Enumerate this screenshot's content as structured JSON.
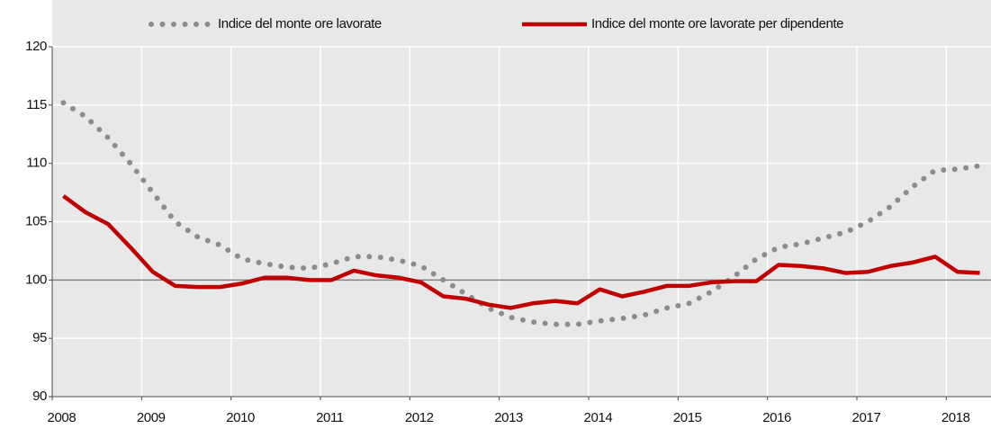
{
  "chart_data": {
    "type": "line",
    "categories": [
      "2008",
      null,
      null,
      null,
      "2009",
      null,
      null,
      null,
      "2010",
      null,
      null,
      null,
      "2011",
      null,
      null,
      null,
      "2012",
      null,
      null,
      null,
      "2013",
      null,
      null,
      null,
      "2014",
      null,
      null,
      null,
      "2015",
      null,
      null,
      null,
      "2016",
      null,
      null,
      null,
      "2017",
      null,
      null,
      null,
      "2018",
      null
    ],
    "series": [
      {
        "name": "Indice del monte ore lavorate",
        "color": "#8c8c8c",
        "style": "dotted",
        "values": [
          115.2,
          114,
          112.2,
          110,
          107.5,
          105,
          103.7,
          103,
          101.8,
          101.4,
          101.1,
          101,
          101.4,
          102,
          102,
          101.7,
          101.2,
          100,
          98.8,
          97.6,
          96.8,
          96.4,
          96.2,
          96.2,
          96.5,
          96.7,
          97,
          97.6,
          98,
          99,
          100.3,
          101.8,
          102.8,
          103.1,
          103.6,
          104.1,
          105,
          106.3,
          108,
          109.4,
          109.5,
          109.8
        ]
      },
      {
        "name": "Indice del monte ore lavorate per dipendente",
        "color": "#c00000",
        "style": "solid",
        "values": [
          107.2,
          105.8,
          104.8,
          102.8,
          100.7,
          99.5,
          99.4,
          99.4,
          99.7,
          100.2,
          100.2,
          100,
          100,
          100.8,
          100.4,
          100.2,
          99.8,
          98.6,
          98.4,
          97.9,
          97.6,
          98,
          98.2,
          98,
          99.2,
          98.6,
          99,
          99.5,
          99.5,
          99.8,
          99.9,
          99.9,
          101.3,
          101.2,
          101,
          100.6,
          100.7,
          101.2,
          101.5,
          102,
          100.7,
          100.6
        ]
      }
    ],
    "ylim": [
      90,
      120
    ],
    "yticks": [
      90,
      95,
      100,
      105,
      110,
      115,
      120
    ],
    "reference_line": 100,
    "grid": true,
    "legend": "top"
  }
}
